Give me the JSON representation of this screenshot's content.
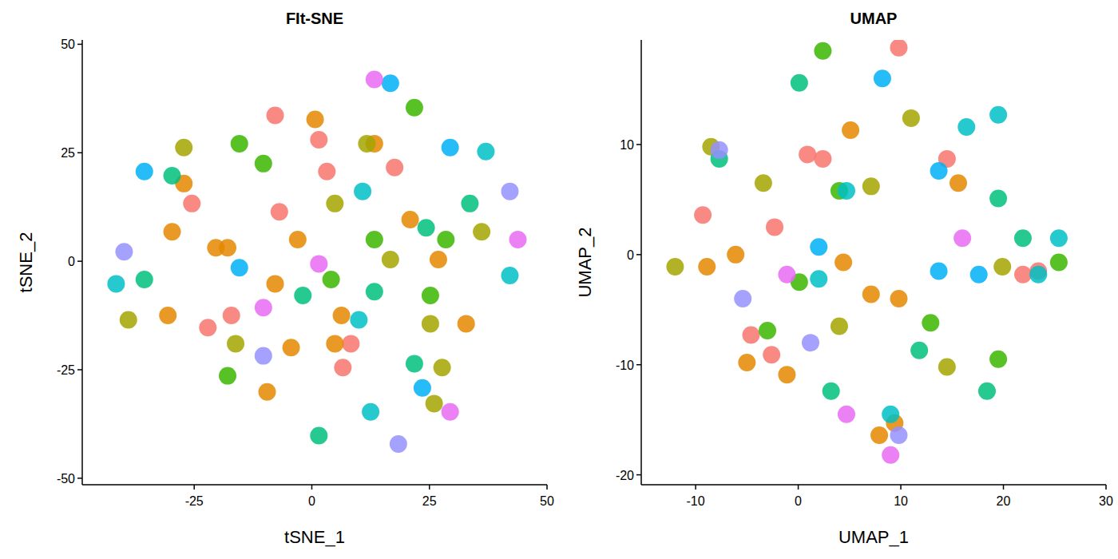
{
  "chart_data": [
    {
      "type": "scatter",
      "title": "FIt-SNE",
      "x_label": "tSNE_1",
      "y_label": "tSNE_2",
      "xlim": [
        -48.8,
        50
      ],
      "ylim": [
        -51.5,
        51
      ],
      "xticks": [
        -25,
        0,
        25,
        50
      ],
      "yticks": [
        -50,
        -25,
        0,
        25,
        50
      ],
      "series": [
        {
          "color": "#F8766D",
          "x": [
            -7.8,
            3.2,
            1.5,
            17.6,
            -6.9,
            -25.5,
            -22.1,
            -17.1,
            6.6,
            8.3
          ],
          "values": [
            33.6,
            20.7,
            28,
            21.6,
            11.4,
            13.3,
            -15.3,
            -12.5,
            -24.5,
            -19
          ]
        },
        {
          "color": "#E58700",
          "x": [
            -27.2,
            -29.7,
            -17.9,
            -20.4,
            -3.0,
            0.7,
            -7.8,
            4.9,
            -30.6,
            -9.5,
            26.9,
            32.8,
            20.9,
            13.3,
            6.3,
            -4.4
          ],
          "values": [
            17.9,
            6.8,
            3.1,
            3.1,
            5.0,
            32.7,
            -5.2,
            -19,
            -12.5,
            -30.1,
            0.4,
            -14.4,
            9.6,
            27.1,
            -12.5,
            -19.9
          ]
        },
        {
          "color": "#A3A500",
          "x": [
            -27.2,
            11.7,
            -16.2,
            25.2,
            36.1,
            4.9,
            26,
            -39,
            16.7,
            27.7
          ],
          "values": [
            26.2,
            27.1,
            -19,
            -14.4,
            6.8,
            13.3,
            -32.8,
            -13.5,
            0.4,
            -24.5
          ]
        },
        {
          "color": "#39B600",
          "x": [
            -10.3,
            -15.4,
            13.3,
            21.8,
            25.2,
            28.5,
            4.1,
            -17.9
          ],
          "values": [
            22.5,
            27.1,
            5,
            35.4,
            -7.9,
            5,
            -4.2,
            -26.4
          ]
        },
        {
          "color": "#00BF7D",
          "x": [
            -35.6,
            -29.7,
            13.3,
            24.3,
            33.6,
            -1.9,
            1.5,
            21.8
          ],
          "values": [
            -4.2,
            19.7,
            -7,
            7.7,
            13.3,
            -7.9,
            -40.2,
            -23.6
          ]
        },
        {
          "color": "#00BFC4",
          "x": [
            -41.6,
            10.8,
            37,
            12.5,
            10,
            42.1
          ],
          "values": [
            -5.2,
            16.1,
            25.3,
            -34.7,
            -13.5,
            -3.3
          ]
        },
        {
          "color": "#00B0F6",
          "x": [
            -35.6,
            29.4,
            16.7,
            -15.4,
            23.5
          ],
          "values": [
            20.7,
            26.2,
            41,
            -1.5,
            -29.2
          ]
        },
        {
          "color": "#9590FF",
          "x": [
            -39.9,
            -10.3,
            42.1,
            18.4
          ],
          "values": [
            2.2,
            -21.8,
            16.1,
            -42.1
          ]
        },
        {
          "color": "#E76BF3",
          "x": [
            1.5,
            13.3,
            29.4,
            -10.3,
            43.8
          ],
          "values": [
            -0.6,
            41.9,
            -34.7,
            -10.7,
            5
          ]
        }
      ]
    },
    {
      "type": "scatter",
      "title": "UMAP",
      "x_label": "UMAP_1",
      "y_label": "UMAP_2",
      "xlim": [
        -15.3,
        30
      ],
      "ylim": [
        -20.9,
        19.5
      ],
      "xticks": [
        -10,
        0,
        10,
        20,
        30
      ],
      "yticks": [
        -20,
        -10,
        0,
        10
      ],
      "series": [
        {
          "color": "#F8766D",
          "x": [
            9.8,
            -9.3,
            2.4,
            0.9,
            14.5,
            23.4,
            21.9,
            -2.3,
            -2.6,
            -4.6
          ],
          "values": [
            18.8,
            3.6,
            8.7,
            9.1,
            8.7,
            -1.5,
            -1.8,
            2.5,
            -9.1,
            -7.3
          ]
        },
        {
          "color": "#E58700",
          "x": [
            -6.1,
            -8.9,
            7.1,
            9.8,
            4.4,
            9.4,
            7.9,
            15.6,
            5.1,
            -5,
            -1.1
          ],
          "values": [
            0,
            -1.1,
            -3.6,
            -4,
            -0.7,
            -15.3,
            -16.4,
            6.5,
            11.3,
            -9.8,
            -10.9
          ]
        },
        {
          "color": "#A3A500",
          "x": [
            -12,
            -3.4,
            7.1,
            19.9,
            14.5,
            -8.5,
            4,
            11
          ],
          "values": [
            -1.1,
            6.5,
            6.2,
            -1.1,
            -10.2,
            9.8,
            -6.5,
            12.4
          ]
        },
        {
          "color": "#39B600",
          "x": [
            2.4,
            25.4,
            4,
            12.9,
            19.5,
            -3,
            0.1
          ],
          "values": [
            18.5,
            -0.7,
            5.8,
            -6.2,
            -9.5,
            -6.9,
            -2.5
          ]
        },
        {
          "color": "#00BF7D",
          "x": [
            0.1,
            11.8,
            18.4,
            21.9,
            3.2,
            -7.7,
            19.5
          ],
          "values": [
            15.6,
            -8.7,
            -12.4,
            1.5,
            -12.4,
            8.7,
            5.1
          ]
        },
        {
          "color": "#00BFC4",
          "x": [
            4.7,
            16.4,
            19.5,
            9,
            2,
            23.4,
            25.4
          ],
          "values": [
            5.8,
            11.6,
            12.7,
            -14.5,
            -2.2,
            -1.8,
            1.5
          ]
        },
        {
          "color": "#00B0F6",
          "x": [
            8.2,
            13.7,
            17.6,
            13.7,
            2
          ],
          "values": [
            16,
            7.6,
            -1.8,
            -1.5,
            0.7
          ]
        },
        {
          "color": "#9590FF",
          "x": [
            -7.7,
            -5.4,
            9.8,
            1.2
          ],
          "values": [
            9.5,
            -4,
            -16.4,
            -8
          ]
        },
        {
          "color": "#E76BF3",
          "x": [
            -1.1,
            16,
            9,
            4.7
          ],
          "values": [
            -1.8,
            1.5,
            -18.2,
            -14.5
          ]
        }
      ]
    }
  ]
}
